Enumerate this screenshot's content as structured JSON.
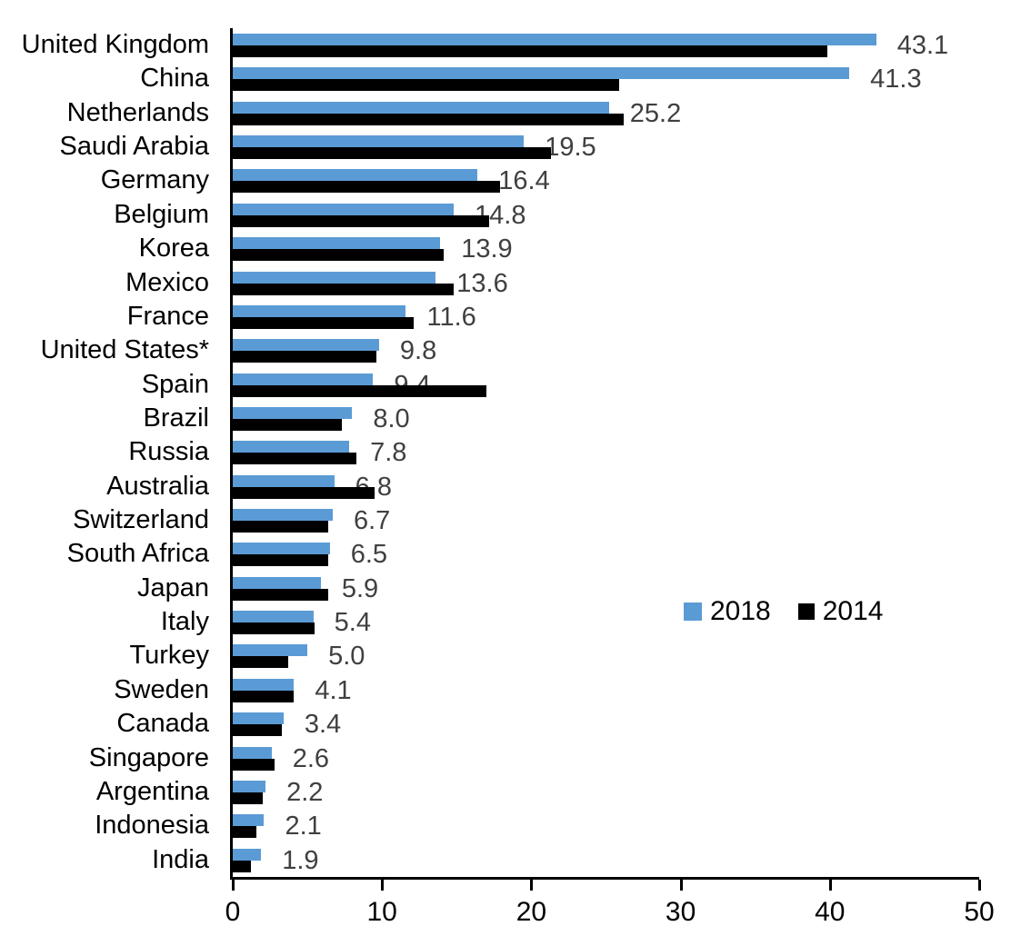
{
  "chart_data": {
    "type": "bar",
    "orientation": "horizontal",
    "title": "",
    "xlabel": "",
    "ylabel": "",
    "xlim": [
      0,
      50
    ],
    "x_ticks": [
      "0",
      "10",
      "20",
      "30",
      "40",
      "50"
    ],
    "grid": false,
    "legend_position": "middle-right",
    "value_label_color": "#404040",
    "axis_color": "#000000",
    "categories": [
      "United Kingdom",
      "China",
      "Netherlands",
      "Saudi Arabia",
      "Germany",
      "Belgium",
      "Korea",
      "Mexico",
      "France",
      "United States*",
      "Spain",
      "Brazil",
      "Russia",
      "Australia",
      "Switzerland",
      "South Africa",
      "Japan",
      "Italy",
      "Turkey",
      "Sweden",
      "Canada",
      "Singapore",
      "Argentina",
      "Indonesia",
      "India"
    ],
    "series": [
      {
        "name": "2018",
        "color": "#5B9BD5",
        "values": [
          43.1,
          41.3,
          25.2,
          19.5,
          16.4,
          14.8,
          13.9,
          13.6,
          11.6,
          9.8,
          9.4,
          8.0,
          7.8,
          6.8,
          6.7,
          6.5,
          5.9,
          5.4,
          5.0,
          4.1,
          3.4,
          2.6,
          2.2,
          2.1,
          1.9
        ]
      },
      {
        "name": "2014",
        "color": "#000000",
        "values": [
          39.8,
          25.9,
          26.2,
          21.3,
          17.9,
          17.2,
          14.1,
          14.8,
          12.1,
          9.6,
          17.0,
          7.3,
          8.3,
          9.5,
          6.4,
          6.4,
          6.4,
          5.5,
          3.7,
          4.1,
          3.3,
          2.8,
          2.0,
          1.6,
          1.2
        ]
      }
    ],
    "value_labels": [
      "43.1",
      "41.3",
      "25.2",
      "19.5",
      "16.4",
      "14.8",
      "13.9",
      "13.6",
      "11.6",
      "9.8",
      "9.4",
      "8.0",
      "7.8",
      "6.8",
      "6.7",
      "6.5",
      "5.9",
      "5.4",
      "5.0",
      "4.1",
      "3.4",
      "2.6",
      "2.2",
      "2.1",
      "1.9"
    ],
    "value_labels_series": "2018"
  }
}
